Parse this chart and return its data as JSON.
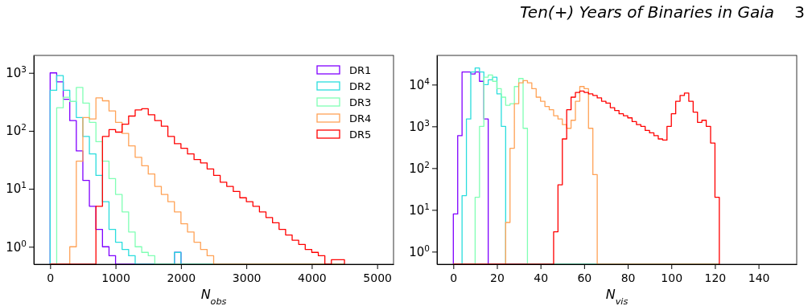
{
  "chart_data": [
    {
      "type": "histogram",
      "xlabel": "N$_{obs}$",
      "log": true,
      "legend": "top right",
      "bins": [
        0,
        100,
        200,
        300,
        400,
        500,
        600,
        700,
        800,
        900,
        1000,
        1100,
        1200,
        1300,
        1400,
        1500,
        1600,
        1700,
        1800,
        1900,
        2000,
        2100,
        2200,
        2300,
        2400,
        2500,
        2600,
        2700,
        2800,
        2900,
        3000,
        3100,
        3200,
        3300,
        3400,
        3500,
        3600,
        3700,
        3800,
        3900,
        4000,
        4100,
        4200,
        4300,
        4400,
        4500
      ],
      "xlim": [
        -250,
        5250
      ],
      "xticks": [
        0,
        1000,
        2000,
        3000,
        4000,
        5000
      ],
      "ylim": [
        0.5,
        2000
      ],
      "yticks": [
        {
          "value": 1,
          "label": "10$^{0}$"
        },
        {
          "value": 10,
          "label": "10$^{1}$"
        },
        {
          "value": 100,
          "label": "10$^{2}$"
        },
        {
          "value": 1000,
          "label": "10$^{3}$"
        }
      ],
      "series": [
        {
          "name": "DR1",
          "color": "#8000ff",
          "values": [
            1000,
            700,
            350,
            150,
            45,
            14,
            5,
            2,
            1,
            0.7,
            null,
            null,
            null,
            null,
            null,
            null,
            null,
            null,
            null,
            0.8,
            null,
            null,
            null,
            null,
            null,
            null,
            null,
            null,
            null,
            null,
            null,
            null,
            null,
            null,
            null,
            null,
            null,
            null,
            null,
            null,
            null,
            null,
            null,
            null,
            null
          ]
        },
        {
          "name": "DR2",
          "color": "#2adddd",
          "values": [
            500,
            900,
            500,
            320,
            170,
            80,
            40,
            17,
            6,
            2,
            1.2,
            0.9,
            0.7,
            null,
            null,
            null,
            null,
            null,
            null,
            0.8,
            null,
            null,
            null,
            null,
            null,
            null,
            null,
            null,
            null,
            null,
            null,
            null,
            null,
            null,
            null,
            null,
            null,
            null,
            null,
            null,
            null,
            null,
            null,
            null,
            null
          ]
        },
        {
          "name": "DR3",
          "color": "#80ffb4",
          "values": [
            null,
            250,
            380,
            320,
            560,
            300,
            140,
            65,
            30,
            15,
            8,
            4,
            1.8,
            1,
            0.8,
            0.7,
            null,
            null,
            null,
            null,
            null,
            null,
            null,
            null,
            null,
            null,
            null,
            null,
            null,
            null,
            null,
            null,
            null,
            null,
            null,
            null,
            null,
            null,
            null,
            null,
            null,
            null,
            null,
            null,
            null
          ]
        },
        {
          "name": "DR4",
          "color": "#ffa256",
          "values": [
            null,
            null,
            null,
            1,
            30,
            170,
            160,
            370,
            330,
            220,
            140,
            90,
            55,
            35,
            25,
            18,
            11,
            8,
            6,
            4,
            2.5,
            1.8,
            1.2,
            0.9,
            0.7,
            null,
            null,
            null,
            null,
            null,
            null,
            null,
            null,
            null,
            null,
            null,
            null,
            null,
            null,
            null,
            null,
            null,
            null,
            null,
            null
          ]
        },
        {
          "name": "DR5",
          "color": "#ff0000",
          "values": [
            null,
            null,
            null,
            null,
            null,
            null,
            null,
            5,
            80,
            105,
            95,
            130,
            180,
            230,
            240,
            190,
            150,
            120,
            80,
            60,
            50,
            40,
            32,
            28,
            22,
            17,
            13,
            11,
            9,
            7,
            6,
            5,
            4,
            3.2,
            2.6,
            2,
            1.6,
            1.3,
            1.1,
            0.9,
            0.8,
            0.7,
            null,
            0.6,
            0.6
          ]
        }
      ]
    },
    {
      "type": "histogram",
      "xlabel": "N$_{vis}$",
      "log": true,
      "annotations": [
        "Ten(+) Years of Binaries in Gaia",
        "3"
      ],
      "bins": [
        0,
        2,
        4,
        6,
        8,
        10,
        12,
        14,
        16,
        18,
        20,
        22,
        24,
        26,
        28,
        30,
        32,
        34,
        36,
        38,
        40,
        42,
        44,
        46,
        48,
        50,
        52,
        54,
        56,
        58,
        60,
        62,
        64,
        66,
        68,
        70,
        72,
        74,
        76,
        78,
        80,
        82,
        84,
        86,
        88,
        90,
        92,
        94,
        96,
        98,
        100,
        102,
        104,
        106,
        108,
        110,
        112,
        114,
        116,
        118,
        120,
        122
      ],
      "xlim": [
        -7.5,
        157.5
      ],
      "xticks": [
        0,
        20,
        40,
        60,
        80,
        100,
        120,
        140
      ],
      "ylim": [
        0.5,
        50000
      ],
      "yticks": [
        {
          "value": 1,
          "label": "10$^{0}$"
        },
        {
          "value": 10,
          "label": "10$^{1}$"
        },
        {
          "value": 100,
          "label": "10$^{2}$"
        },
        {
          "value": 1000,
          "label": "10$^{3}$"
        },
        {
          "value": 10000,
          "label": "10$^{4}$"
        }
      ],
      "series": [
        {
          "color": "#8000ff",
          "values": [
            8,
            600,
            20000,
            20000,
            18000,
            20000,
            12000,
            1500,
            null,
            null,
            null,
            null,
            null,
            null,
            null,
            null,
            null,
            null,
            null,
            null,
            null,
            null,
            null,
            null,
            null,
            null,
            null,
            null,
            null,
            null,
            null,
            null,
            null,
            null,
            null,
            null,
            null,
            null,
            null,
            null,
            null,
            null,
            null,
            null,
            null,
            null,
            null,
            null,
            null,
            null,
            null,
            null,
            null,
            null,
            null,
            null,
            null,
            null,
            null,
            null,
            null
          ]
        },
        {
          "color": "#2adddd",
          "values": [
            null,
            null,
            22,
            1500,
            20000,
            25000,
            20000,
            10000,
            13000,
            15000,
            6000,
            1000,
            null,
            null,
            null,
            null,
            null,
            null,
            null,
            null,
            null,
            null,
            null,
            null,
            null,
            null,
            null,
            null,
            null,
            null,
            null,
            null,
            null,
            null,
            null,
            null,
            null,
            null,
            null,
            null,
            null,
            null,
            null,
            null,
            null,
            null,
            null,
            null,
            null,
            null,
            null,
            null,
            null,
            null,
            null,
            null,
            null,
            null,
            null,
            null,
            null
          ]
        },
        {
          "color": "#80ffb4",
          "values": [
            null,
            null,
            null,
            null,
            null,
            20,
            1000,
            15000,
            17000,
            12000,
            8000,
            5000,
            3200,
            3500,
            9000,
            14000,
            900,
            null,
            null,
            null,
            null,
            null,
            null,
            null,
            null,
            null,
            null,
            null,
            null,
            null,
            null,
            null,
            null,
            null,
            null,
            null,
            null,
            null,
            null,
            null,
            null,
            null,
            null,
            null,
            null,
            null,
            null,
            null,
            null,
            null,
            null,
            null,
            null,
            null,
            null,
            null,
            null,
            null,
            null,
            null,
            null
          ]
        },
        {
          "color": "#ffa256",
          "values": [
            null,
            null,
            null,
            null,
            null,
            null,
            null,
            null,
            null,
            null,
            null,
            null,
            5,
            300,
            3500,
            11000,
            12500,
            11000,
            8000,
            5000,
            4000,
            3000,
            2500,
            1800,
            1500,
            1100,
            900,
            1400,
            4000,
            9000,
            8000,
            900,
            70,
            null,
            null,
            null,
            null,
            null,
            null,
            null,
            null,
            null,
            null,
            null,
            null,
            null,
            null,
            null,
            null,
            null,
            null,
            null,
            null,
            null,
            null,
            null,
            null,
            null,
            null,
            null,
            null
          ]
        },
        {
          "color": "#ff0000",
          "values": [
            null,
            null,
            null,
            null,
            null,
            null,
            null,
            null,
            null,
            null,
            null,
            null,
            null,
            null,
            null,
            null,
            null,
            null,
            null,
            null,
            null,
            null,
            null,
            3,
            40,
            500,
            2500,
            5000,
            6500,
            7000,
            6500,
            6000,
            5500,
            4800,
            4000,
            3600,
            2800,
            2400,
            2000,
            1800,
            1600,
            1300,
            1100,
            1000,
            800,
            700,
            600,
            500,
            470,
            1000,
            2000,
            4000,
            5500,
            6300,
            4000,
            2200,
            1250,
            1400,
            1000,
            400,
            20
          ]
        }
      ]
    }
  ]
}
